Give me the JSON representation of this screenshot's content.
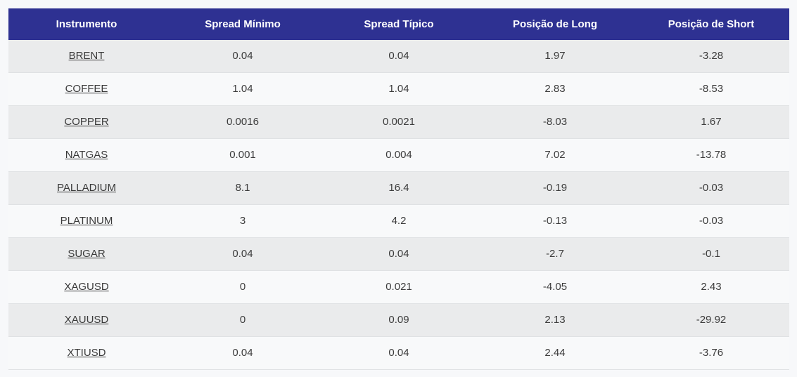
{
  "colors": {
    "header_bg": "#2e3192",
    "header_text": "#ffffff",
    "row_odd_bg": "#eaebec",
    "row_even_bg": "#f8f9fa",
    "row_border": "#dfe1e3",
    "cell_text": "#3c3c3c",
    "link_text": "#3a3a3a",
    "page_bg": "#f7f8fa"
  },
  "table": {
    "columns": [
      "Instrumento",
      "Spread Mínimo",
      "Spread Típico",
      "Posição de Long",
      "Posição de Short"
    ],
    "rows": [
      {
        "instrument": "BRENT",
        "spread_min": "0.04",
        "spread_typical": "0.04",
        "long_position": "1.97",
        "short_position": "-3.28"
      },
      {
        "instrument": "COFFEE",
        "spread_min": "1.04",
        "spread_typical": "1.04",
        "long_position": "2.83",
        "short_position": "-8.53"
      },
      {
        "instrument": "COPPER",
        "spread_min": "0.0016",
        "spread_typical": "0.0021",
        "long_position": "-8.03",
        "short_position": "1.67"
      },
      {
        "instrument": "NATGAS",
        "spread_min": "0.001",
        "spread_typical": "0.004",
        "long_position": "7.02",
        "short_position": "-13.78"
      },
      {
        "instrument": "PALLADIUM",
        "spread_min": "8.1",
        "spread_typical": "16.4",
        "long_position": "-0.19",
        "short_position": "-0.03"
      },
      {
        "instrument": "PLATINUM",
        "spread_min": "3",
        "spread_typical": "4.2",
        "long_position": "-0.13",
        "short_position": "-0.03"
      },
      {
        "instrument": "SUGAR",
        "spread_min": "0.04",
        "spread_typical": "0.04",
        "long_position": "-2.7",
        "short_position": "-0.1"
      },
      {
        "instrument": "XAGUSD",
        "spread_min": "0",
        "spread_typical": "0.021",
        "long_position": "-4.05",
        "short_position": "2.43"
      },
      {
        "instrument": "XAUUSD",
        "spread_min": "0",
        "spread_typical": "0.09",
        "long_position": "2.13",
        "short_position": "-29.92"
      },
      {
        "instrument": "XTIUSD",
        "spread_min": "0.04",
        "spread_typical": "0.04",
        "long_position": "2.44",
        "short_position": "-3.76"
      }
    ]
  }
}
